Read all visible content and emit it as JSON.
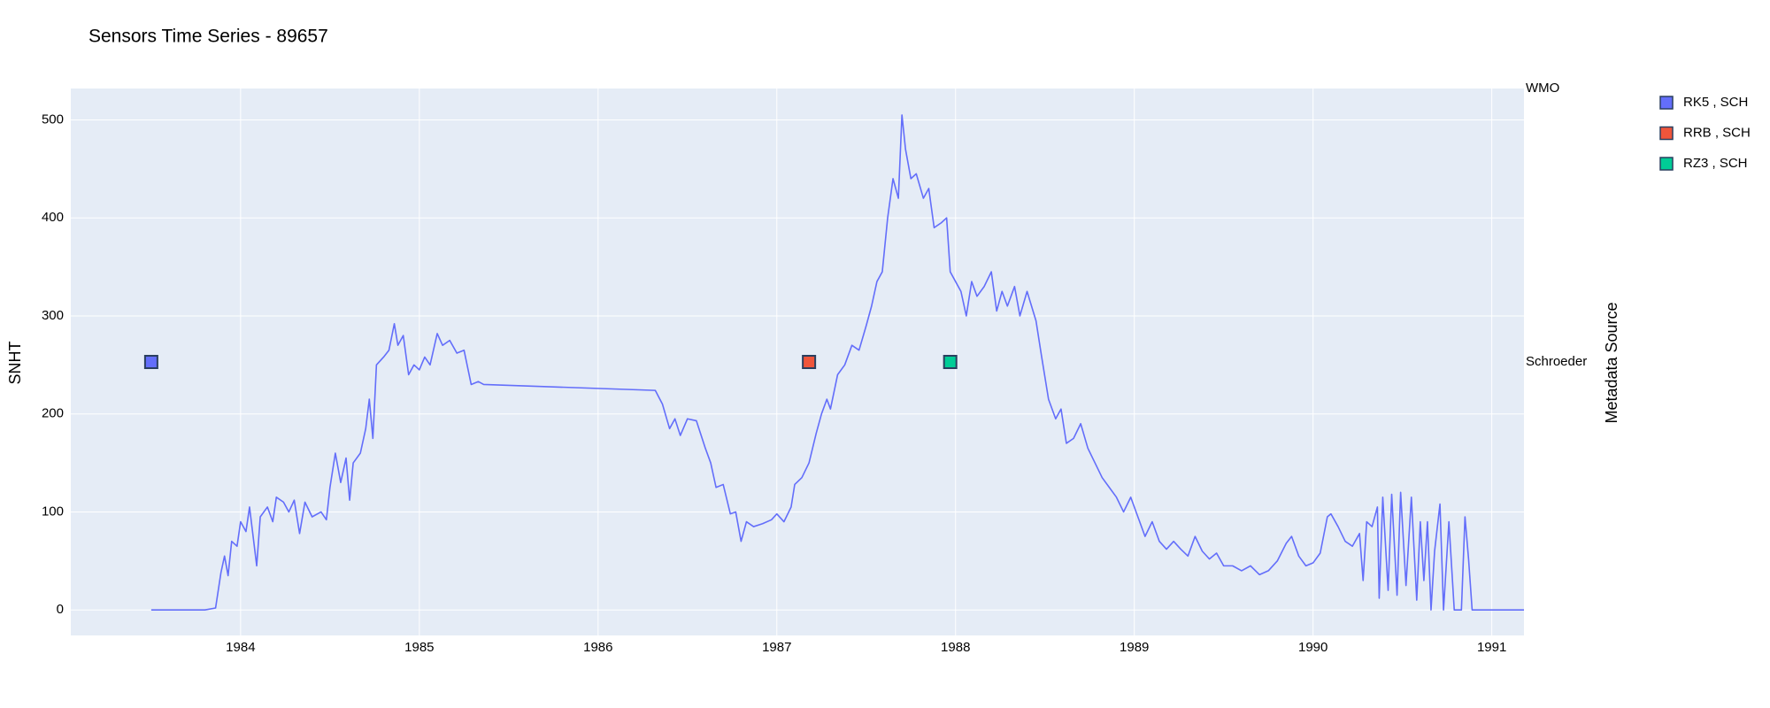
{
  "chart_data": {
    "type": "line",
    "title": "Sensors Time Series - 89657",
    "y_label": "SNHT",
    "y2_label": "Metadata Source",
    "xlim": [
      1983.05,
      1991.18
    ],
    "xticks": [
      1984,
      1985,
      1986,
      1987,
      1988,
      1989,
      1990,
      1991
    ],
    "ylim": [
      -26,
      532
    ],
    "yticks": [
      0,
      100,
      200,
      300,
      400,
      500
    ],
    "y2lim": [
      -1,
      1
    ],
    "y2ticks": [
      {
        "value": 0,
        "label": "Schroeder"
      },
      {
        "value": 1,
        "label": "WMO"
      }
    ],
    "grid": true,
    "legend": "right",
    "series": [
      {
        "color": "#636efa",
        "mode": "line",
        "x": [
          1983.5,
          1983.8,
          1983.86,
          1983.89,
          1983.91,
          1983.93,
          1983.95,
          1983.98,
          1984.0,
          1984.03,
          1984.05,
          1984.07,
          1984.09,
          1984.11,
          1984.15,
          1984.18,
          1984.2,
          1984.24,
          1984.27,
          1984.3,
          1984.33,
          1984.36,
          1984.4,
          1984.45,
          1984.48,
          1984.5,
          1984.53,
          1984.56,
          1984.59,
          1984.61,
          1984.63,
          1984.67,
          1984.7,
          1984.72,
          1984.74,
          1984.76,
          1984.8,
          1984.83,
          1984.86,
          1984.88,
          1984.91,
          1984.94,
          1984.97,
          1985.0,
          1985.03,
          1985.06,
          1985.1,
          1985.13,
          1985.17,
          1985.21,
          1985.25,
          1985.29,
          1985.33,
          1985.36,
          1986.32,
          1986.36,
          1986.4,
          1986.43,
          1986.46,
          1986.5,
          1986.55,
          1986.6,
          1986.63,
          1986.66,
          1986.7,
          1986.74,
          1986.77,
          1986.8,
          1986.83,
          1986.87,
          1986.92,
          1986.97,
          1987.0,
          1987.04,
          1987.08,
          1987.1,
          1987.14,
          1987.18,
          1987.22,
          1987.25,
          1987.28,
          1987.3,
          1987.34,
          1987.38,
          1987.42,
          1987.46,
          1987.5,
          1987.53,
          1987.56,
          1987.59,
          1987.62,
          1987.65,
          1987.68,
          1987.7,
          1987.72,
          1987.75,
          1987.78,
          1987.82,
          1987.85,
          1987.88,
          1987.92,
          1987.95,
          1987.97,
          1988.0,
          1988.03,
          1988.06,
          1988.09,
          1988.12,
          1988.16,
          1988.2,
          1988.23,
          1988.26,
          1988.29,
          1988.33,
          1988.36,
          1988.4,
          1988.45,
          1988.48,
          1988.52,
          1988.56,
          1988.59,
          1988.62,
          1988.66,
          1988.7,
          1988.74,
          1988.78,
          1988.82,
          1988.86,
          1988.9,
          1988.94,
          1988.98,
          1989.02,
          1989.06,
          1989.1,
          1989.14,
          1989.18,
          1989.22,
          1989.26,
          1989.3,
          1989.34,
          1989.38,
          1989.42,
          1989.46,
          1989.5,
          1989.55,
          1989.6,
          1989.65,
          1989.7,
          1989.75,
          1989.8,
          1989.85,
          1989.88,
          1989.92,
          1989.96,
          1990.0,
          1990.04,
          1990.08,
          1990.1,
          1990.14,
          1990.18,
          1990.22,
          1990.26,
          1990.28,
          1990.3,
          1990.33,
          1990.36,
          1990.37,
          1990.39,
          1990.42,
          1990.44,
          1990.47,
          1990.49,
          1990.52,
          1990.55,
          1990.58,
          1990.6,
          1990.62,
          1990.64,
          1990.66,
          1990.68,
          1990.71,
          1990.73,
          1990.76,
          1990.79,
          1990.83,
          1990.85,
          1990.87,
          1990.89,
          1991.18
        ],
        "values": [
          0,
          0,
          2,
          38,
          55,
          35,
          70,
          65,
          90,
          80,
          105,
          75,
          45,
          95,
          105,
          90,
          115,
          110,
          100,
          112,
          78,
          110,
          95,
          100,
          92,
          125,
          160,
          130,
          155,
          112,
          150,
          160,
          185,
          215,
          175,
          250,
          258,
          265,
          292,
          270,
          280,
          240,
          250,
          245,
          258,
          250,
          282,
          270,
          275,
          262,
          265,
          230,
          233,
          230,
          224,
          210,
          185,
          195,
          178,
          195,
          193,
          165,
          150,
          125,
          128,
          98,
          100,
          70,
          90,
          85,
          88,
          92,
          98,
          90,
          105,
          128,
          135,
          150,
          180,
          200,
          215,
          205,
          240,
          250,
          270,
          265,
          290,
          310,
          335,
          345,
          400,
          440,
          420,
          505,
          470,
          440,
          445,
          420,
          430,
          390,
          395,
          400,
          345,
          335,
          325,
          300,
          335,
          320,
          330,
          345,
          305,
          325,
          310,
          330,
          300,
          325,
          295,
          260,
          215,
          195,
          205,
          170,
          175,
          190,
          165,
          150,
          135,
          125,
          115,
          100,
          115,
          95,
          75,
          90,
          70,
          62,
          70,
          62,
          55,
          75,
          60,
          52,
          58,
          45,
          45,
          40,
          45,
          36,
          40,
          50,
          68,
          75,
          55,
          45,
          48,
          58,
          95,
          98,
          85,
          70,
          65,
          78,
          30,
          90,
          85,
          105,
          12,
          115,
          20,
          118,
          15,
          120,
          25,
          115,
          10,
          90,
          30,
          90,
          0,
          60,
          108,
          0,
          90,
          0,
          0,
          95,
          52,
          0,
          0
        ]
      },
      {
        "name": "RK5 , SCH",
        "color": "#636efa",
        "mode": "markers",
        "axis": "y2",
        "x": [
          1983.5
        ],
        "values": [
          0
        ]
      },
      {
        "name": "RRB , SCH",
        "color": "#EF553B",
        "mode": "markers",
        "axis": "y2",
        "x": [
          1987.18
        ],
        "values": [
          0
        ]
      },
      {
        "name": "RZ3 , SCH",
        "color": "#00cc96",
        "mode": "markers",
        "axis": "y2",
        "x": [
          1987.97
        ],
        "values": [
          0
        ]
      }
    ]
  }
}
